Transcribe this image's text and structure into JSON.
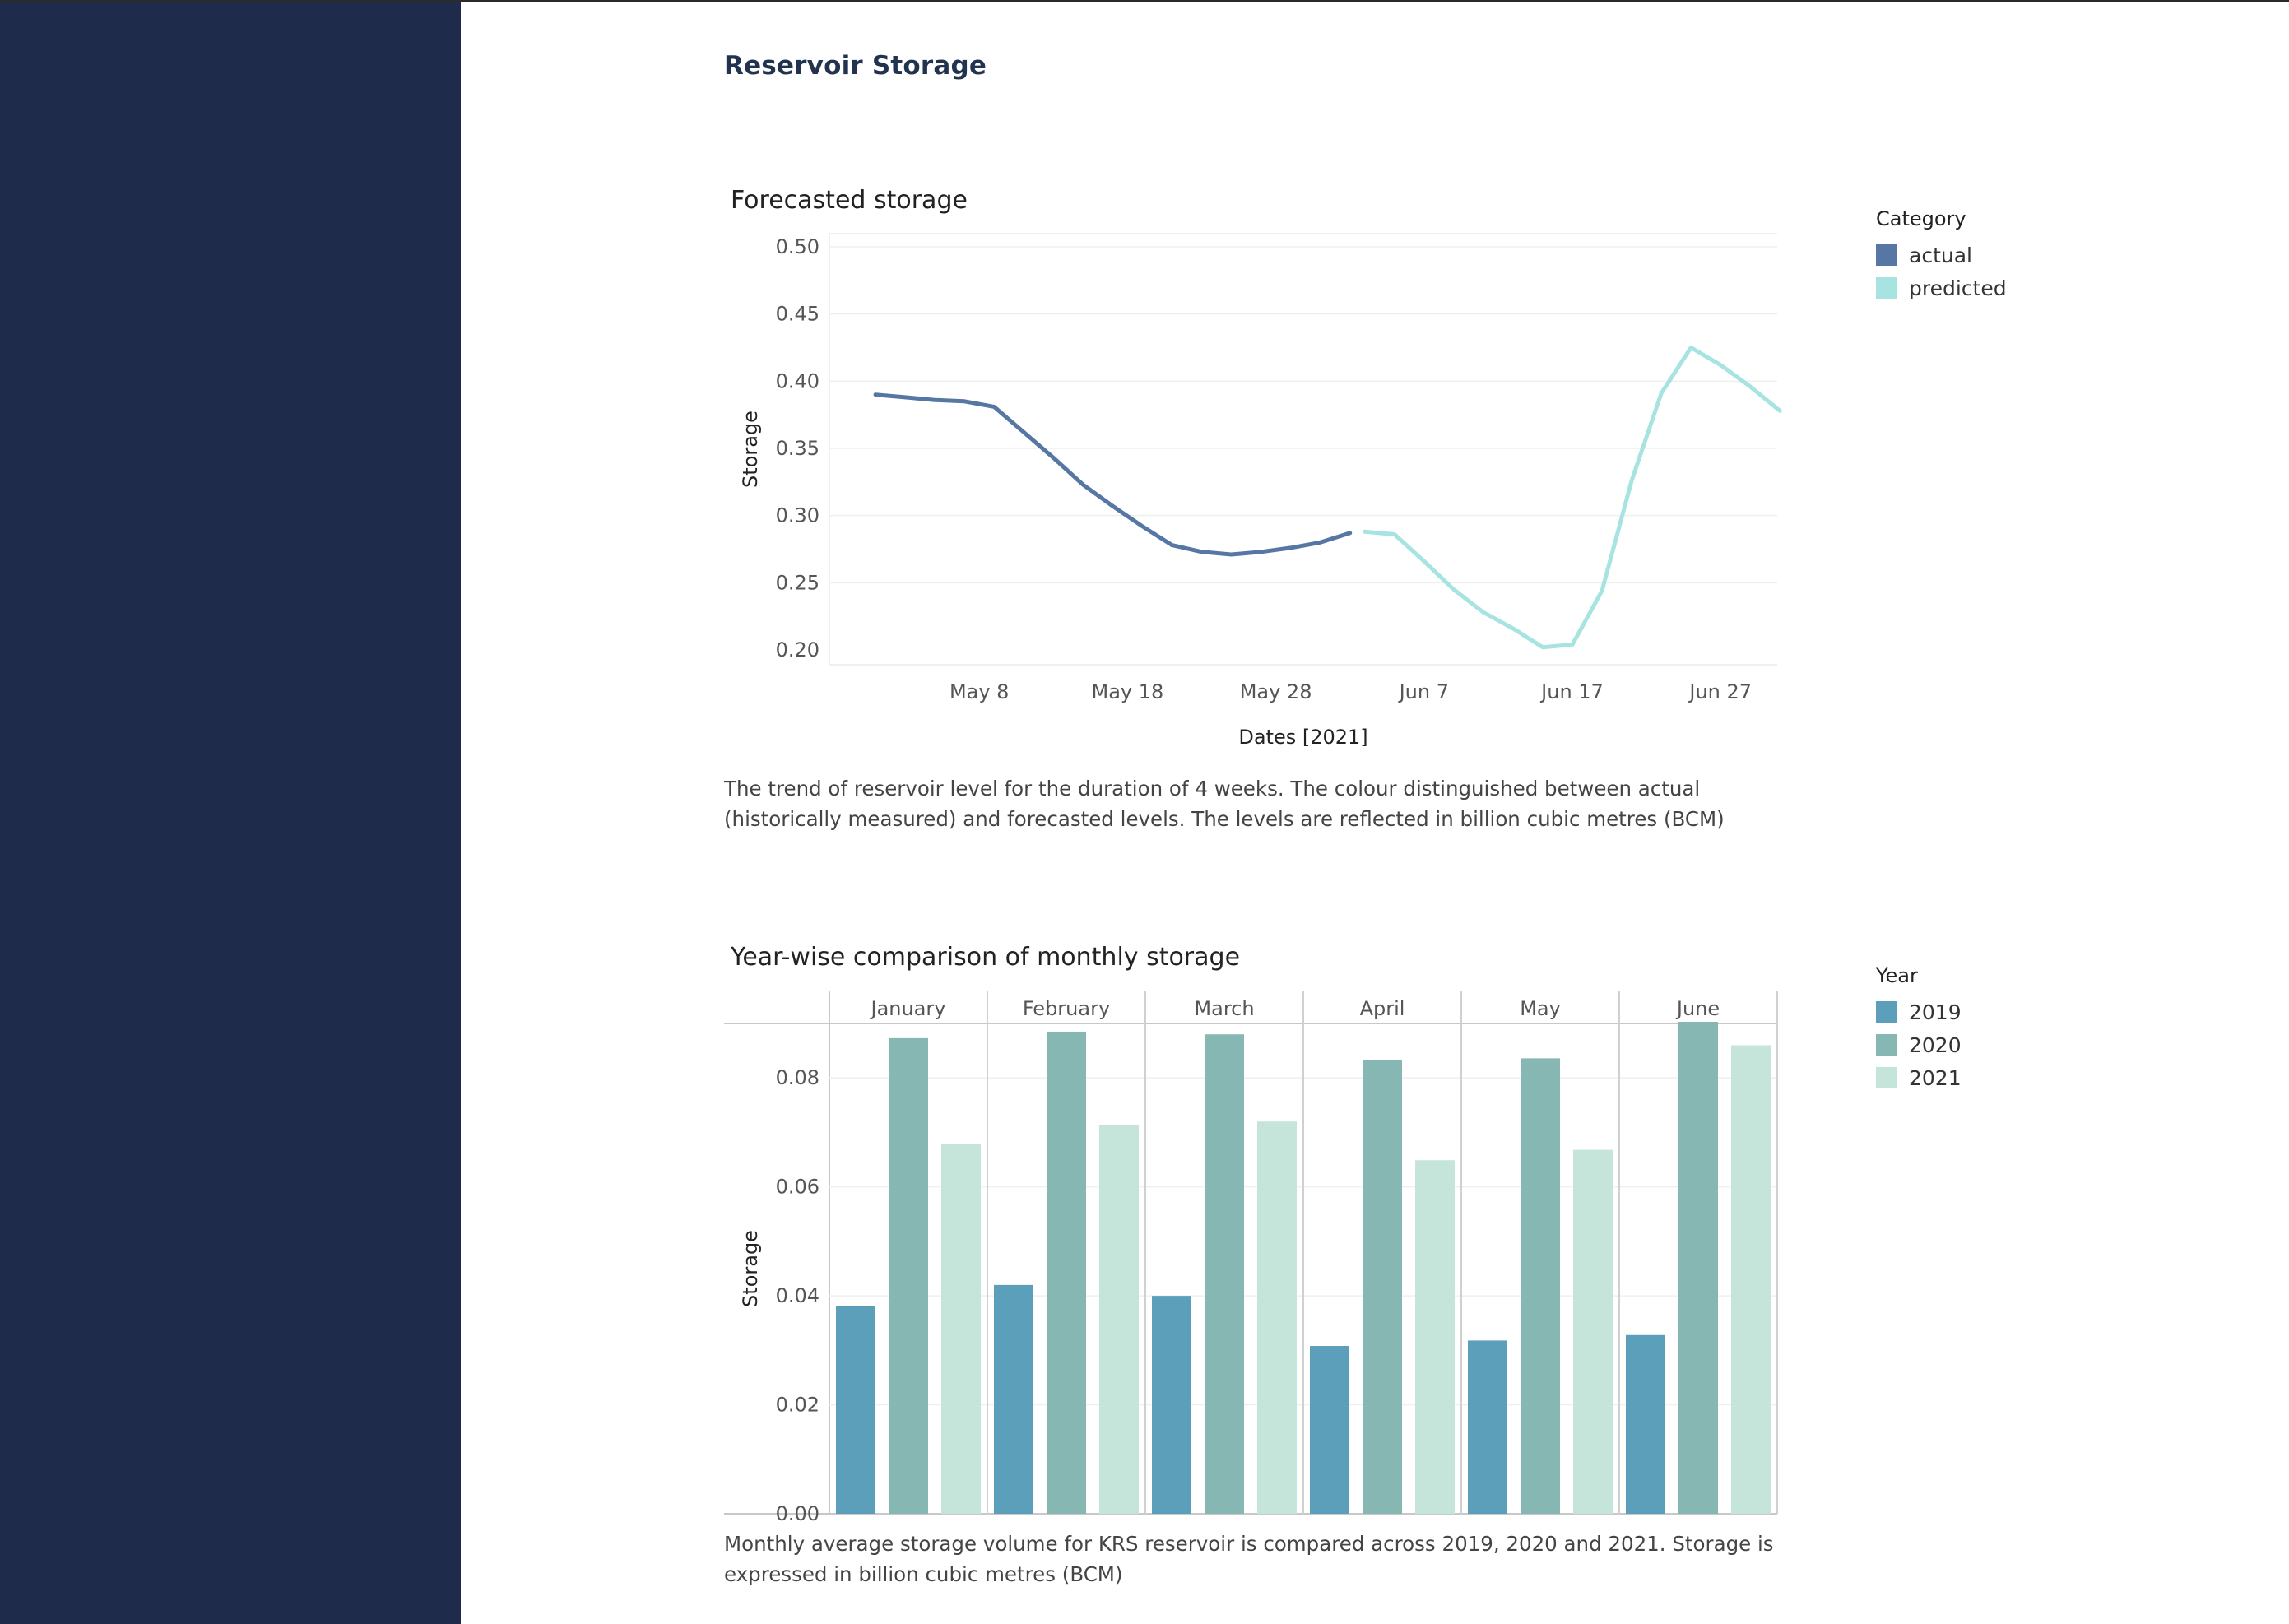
{
  "page": {
    "title": "Reservoir Storage"
  },
  "colors": {
    "sidebar": "#1f2b4a",
    "actual": "#5677a4",
    "predicted": "#a7e4e1",
    "y2019": "#5b9fba",
    "y2020": "#86b7b2",
    "y2021": "#c5e4da"
  },
  "chart_data": [
    {
      "type": "line",
      "title": "Forecasted storage",
      "xlabel": "Dates [2021]",
      "ylabel": "Storage",
      "ylim": [
        0.2,
        0.5
      ],
      "yticks": [
        "0.50",
        "0.45",
        "0.40",
        "0.35",
        "0.30",
        "0.25",
        "0.20"
      ],
      "xticks": [
        "May 8",
        "May 18",
        "May 28",
        "Jun 7",
        "Jun 17",
        "Jun 27"
      ],
      "legend_title": "Category",
      "legend_placement": "right",
      "grid": true,
      "series": [
        {
          "name": "actual",
          "x": [
            "2021-05-01",
            "2021-05-03",
            "2021-05-05",
            "2021-05-07",
            "2021-05-09",
            "2021-05-11",
            "2021-05-13",
            "2021-05-15",
            "2021-05-17",
            "2021-05-19",
            "2021-05-21",
            "2021-05-23",
            "2021-05-25",
            "2021-05-27",
            "2021-05-29",
            "2021-05-31",
            "2021-06-02"
          ],
          "y": [
            0.39,
            0.388,
            0.386,
            0.385,
            0.381,
            0.362,
            0.343,
            0.323,
            0.307,
            0.292,
            0.278,
            0.273,
            0.271,
            0.273,
            0.276,
            0.28,
            0.287
          ]
        },
        {
          "name": "predicted",
          "x": [
            "2021-06-03",
            "2021-06-05",
            "2021-06-07",
            "2021-06-09",
            "2021-06-11",
            "2021-06-13",
            "2021-06-15",
            "2021-06-17",
            "2021-06-19",
            "2021-06-21",
            "2021-06-23",
            "2021-06-25",
            "2021-06-27",
            "2021-06-29",
            "2021-07-01"
          ],
          "y": [
            0.288,
            0.286,
            0.266,
            0.245,
            0.228,
            0.216,
            0.202,
            0.204,
            0.244,
            0.326,
            0.391,
            0.425,
            0.412,
            0.396,
            0.378
          ]
        }
      ]
    },
    {
      "type": "bar",
      "title": "Year-wise comparison of monthly storage",
      "ylabel": "Storage",
      "ylim": [
        0,
        0.09
      ],
      "yticks": [
        "0.08",
        "0.06",
        "0.04",
        "0.02",
        "0.00"
      ],
      "categories": [
        "January",
        "February",
        "March",
        "April",
        "May",
        "June"
      ],
      "legend_title": "Year",
      "legend_placement": "right",
      "grid": true,
      "series": [
        {
          "name": "2019",
          "values": [
            0.0381,
            0.042,
            0.04,
            0.0308,
            0.0318,
            0.0328
          ]
        },
        {
          "name": "2020",
          "values": [
            0.0873,
            0.0885,
            0.088,
            0.0833,
            0.0836,
            0.0903
          ]
        },
        {
          "name": "2021",
          "values": [
            0.0678,
            0.0714,
            0.072,
            0.0649,
            0.0668,
            0.086
          ]
        }
      ]
    }
  ],
  "captions": {
    "line": "The trend of reservoir level for the duration of 4 weeks. The colour distinguished between actual (historically measured) and forecasted levels. The levels are reflected in billion cubic metres (BCM)",
    "bar": "Monthly average storage volume for KRS reservoir is compared across 2019, 2020 and 2021. Storage is expressed in billion cubic metres (BCM)"
  }
}
